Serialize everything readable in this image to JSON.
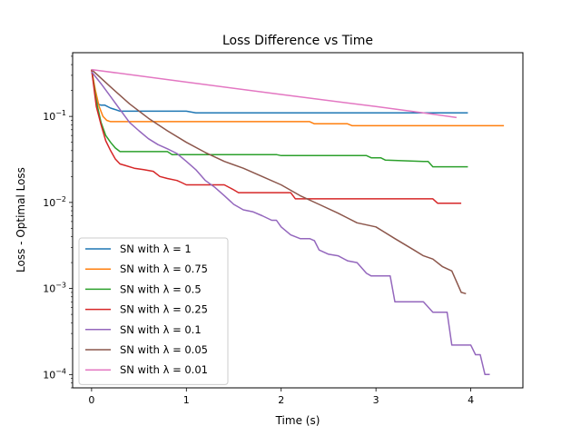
{
  "chart_data": {
    "type": "line",
    "title": "Loss Difference vs Time",
    "xlabel": "Time (s)",
    "ylabel": "Loss - Optimal Loss",
    "xlim": [
      -0.2,
      4.55
    ],
    "ylim": [
      7e-05,
      0.55
    ],
    "yscale": "log",
    "x_ticks": [
      {
        "value": 0,
        "label": "0"
      },
      {
        "value": 1,
        "label": "1"
      },
      {
        "value": 2,
        "label": "2"
      },
      {
        "value": 3,
        "label": "3"
      },
      {
        "value": 4,
        "label": "4"
      }
    ],
    "y_ticks": [
      {
        "value": 0.0001,
        "base": "10",
        "exp": "−4"
      },
      {
        "value": 0.001,
        "base": "10",
        "exp": "−3"
      },
      {
        "value": 0.01,
        "base": "10",
        "exp": "−2"
      },
      {
        "value": 0.1,
        "base": "10",
        "exp": "−1"
      }
    ],
    "grid": false,
    "legend_position": "lower-left",
    "series": [
      {
        "name": "SN with λ = 1",
        "color": "#1f77b4",
        "x": [
          0,
          0.06,
          0.1,
          0.14,
          0.2,
          0.25,
          0.3,
          0.35,
          0.6,
          1.0,
          1.1,
          1.5,
          2.0,
          2.5,
          3.0,
          3.5,
          3.97
        ],
        "y": [
          0.35,
          0.14,
          0.135,
          0.135,
          0.125,
          0.12,
          0.115,
          0.115,
          0.115,
          0.115,
          0.11,
          0.11,
          0.11,
          0.11,
          0.11,
          0.11,
          0.11
        ]
      },
      {
        "name": "SN with λ = 0.75",
        "color": "#ff7f0e",
        "x": [
          0,
          0.04,
          0.08,
          0.12,
          0.16,
          0.2,
          0.3,
          0.5,
          1.0,
          1.5,
          2.0,
          2.3,
          2.35,
          2.7,
          2.75,
          3.0,
          3.5,
          4.0,
          4.35
        ],
        "y": [
          0.35,
          0.2,
          0.13,
          0.1,
          0.09,
          0.087,
          0.087,
          0.087,
          0.087,
          0.087,
          0.087,
          0.087,
          0.082,
          0.082,
          0.078,
          0.078,
          0.078,
          0.078,
          0.078
        ]
      },
      {
        "name": "SN with λ = 0.5",
        "color": "#2ca02c",
        "x": [
          0,
          0.05,
          0.1,
          0.15,
          0.2,
          0.25,
          0.3,
          0.35,
          0.5,
          0.8,
          0.85,
          1.0,
          1.5,
          1.95,
          2.0,
          2.5,
          2.9,
          2.95,
          3.05,
          3.1,
          3.5,
          3.55,
          3.6,
          3.97
        ],
        "y": [
          0.35,
          0.15,
          0.085,
          0.06,
          0.05,
          0.043,
          0.039,
          0.039,
          0.039,
          0.039,
          0.036,
          0.036,
          0.036,
          0.036,
          0.035,
          0.035,
          0.035,
          0.033,
          0.033,
          0.031,
          0.03,
          0.03,
          0.026,
          0.026
        ]
      },
      {
        "name": "SN with λ = 0.25",
        "color": "#d62728",
        "x": [
          0,
          0.05,
          0.1,
          0.15,
          0.2,
          0.25,
          0.3,
          0.35,
          0.45,
          0.55,
          0.65,
          0.72,
          0.8,
          0.9,
          0.95,
          1.0,
          1.2,
          1.4,
          1.5,
          1.55,
          2.0,
          2.1,
          2.15,
          2.5,
          3.0,
          3.4,
          3.6,
          3.65,
          3.9
        ],
        "y": [
          0.35,
          0.13,
          0.08,
          0.052,
          0.04,
          0.032,
          0.028,
          0.027,
          0.025,
          0.024,
          0.023,
          0.02,
          0.019,
          0.018,
          0.017,
          0.016,
          0.016,
          0.016,
          0.014,
          0.013,
          0.013,
          0.013,
          0.011,
          0.011,
          0.011,
          0.011,
          0.011,
          0.0098,
          0.0098
        ]
      },
      {
        "name": "SN with λ = 0.1",
        "color": "#9467bd",
        "x": [
          0,
          0.1,
          0.2,
          0.3,
          0.4,
          0.5,
          0.6,
          0.7,
          0.8,
          0.9,
          1.0,
          1.1,
          1.2,
          1.3,
          1.4,
          1.5,
          1.6,
          1.7,
          1.8,
          1.9,
          1.95,
          2.0,
          2.1,
          2.2,
          2.3,
          2.35,
          2.4,
          2.5,
          2.6,
          2.7,
          2.8,
          2.9,
          2.95,
          3.0,
          3.05,
          3.1,
          3.15,
          3.2,
          3.3,
          3.5,
          3.6,
          3.7,
          3.75,
          3.8,
          3.85,
          3.9,
          3.95,
          4.0,
          4.05,
          4.1,
          4.15,
          4.2
        ],
        "y": [
          0.33,
          0.24,
          0.17,
          0.12,
          0.085,
          0.068,
          0.055,
          0.047,
          0.042,
          0.037,
          0.03,
          0.024,
          0.018,
          0.015,
          0.012,
          0.0095,
          0.0082,
          0.0078,
          0.007,
          0.0062,
          0.0062,
          0.0052,
          0.0042,
          0.0038,
          0.0038,
          0.0036,
          0.0028,
          0.0025,
          0.0024,
          0.0021,
          0.002,
          0.0015,
          0.0014,
          0.0014,
          0.0014,
          0.0014,
          0.0014,
          0.0007,
          0.0007,
          0.0007,
          0.00053,
          0.00053,
          0.00053,
          0.00022,
          0.00022,
          0.00022,
          0.00022,
          0.00022,
          0.00017,
          0.00017,
          0.0001,
          0.0001
        ]
      },
      {
        "name": "SN with λ = 0.05",
        "color": "#8c564b",
        "x": [
          0,
          0.2,
          0.4,
          0.6,
          0.8,
          1.0,
          1.2,
          1.4,
          1.6,
          1.8,
          2.0,
          2.2,
          2.4,
          2.6,
          2.8,
          3.0,
          3.2,
          3.4,
          3.5,
          3.6,
          3.7,
          3.8,
          3.85,
          3.9,
          3.95
        ],
        "y": [
          0.35,
          0.22,
          0.14,
          0.095,
          0.068,
          0.05,
          0.038,
          0.03,
          0.025,
          0.02,
          0.016,
          0.012,
          0.0095,
          0.0075,
          0.0058,
          0.0052,
          0.0038,
          0.0028,
          0.0024,
          0.0022,
          0.0018,
          0.0016,
          0.0012,
          0.0009,
          0.00087
        ]
      },
      {
        "name": "SN with λ = 0.01",
        "color": "#e377c2",
        "x": [
          0,
          1.0,
          2.0,
          3.0,
          3.5,
          3.85
        ],
        "y": [
          0.35,
          0.25,
          0.18,
          0.13,
          0.11,
          0.097
        ]
      }
    ]
  }
}
